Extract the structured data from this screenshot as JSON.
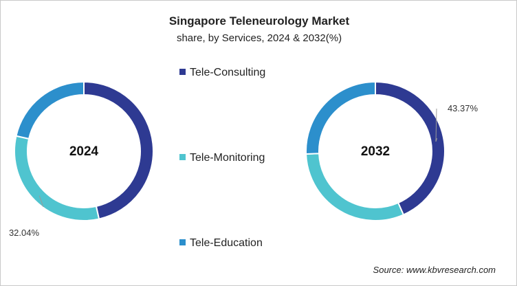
{
  "chart_data": [
    {
      "type": "pie",
      "donut": true,
      "title": "Singapore Teleneurology Market",
      "subtitle": "share, by Services, 2024 & 2032(%)",
      "center_label": "2024",
      "categories": [
        "Tele-Consulting",
        "Tele-Monitoring",
        "Tele-Education"
      ],
      "values": [
        46.5,
        32.04,
        21.46
      ],
      "data_labels": {
        "Tele-Monitoring": "32.04%"
      }
    },
    {
      "type": "pie",
      "donut": true,
      "center_label": "2032",
      "categories": [
        "Tele-Consulting",
        "Tele-Monitoring",
        "Tele-Education"
      ],
      "values": [
        43.37,
        31.0,
        25.63
      ],
      "data_labels": {
        "Tele-Consulting": "43.37%"
      }
    }
  ],
  "header": {
    "title": "Singapore Teleneurology Market",
    "subtitle": "share, by Services, 2024 & 2032(%)"
  },
  "legend": {
    "position": "center",
    "items": [
      {
        "label": "Tele-Consulting",
        "color": "#2e3a92"
      },
      {
        "label": "Tele-Monitoring",
        "color": "#4fc4cf"
      },
      {
        "label": "Tele-Education",
        "color": "#2c8fcc"
      }
    ]
  },
  "source": "Source: www.kbvresearch.com"
}
